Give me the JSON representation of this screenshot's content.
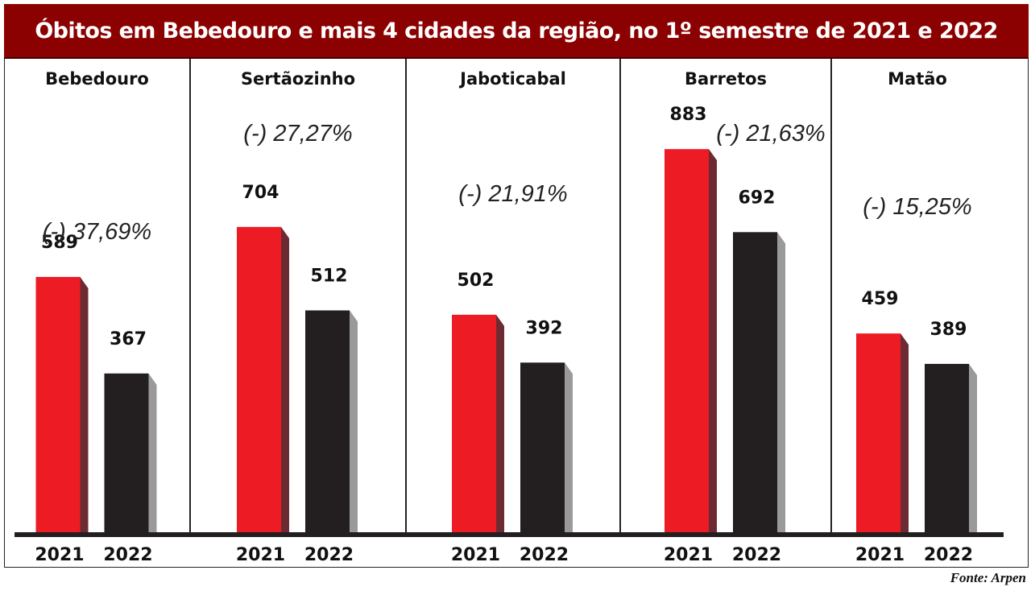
{
  "chart_data": {
    "type": "bar",
    "title": "Óbitos em Bebedouro e mais 4 cidades da região, no 1º semestre de 2021 e 2022",
    "categories": [
      "Bebedouro",
      "Sertãozinho",
      "Jaboticabal",
      "Barretos",
      "Matão"
    ],
    "series": [
      {
        "name": "2021",
        "values": [
          589,
          704,
          502,
          883,
          459
        ],
        "color": "#ed1c24"
      },
      {
        "name": "2022",
        "values": [
          367,
          512,
          392,
          692,
          389
        ],
        "color": "#231f20"
      }
    ],
    "changes": [
      "(-) 37,69%",
      "(-) 27,27%",
      "(-) 21,91%",
      "(-) 21,63%",
      "(-) 15,25%"
    ],
    "ylim": [
      0,
      1000
    ],
    "grid": false,
    "legend": "none"
  },
  "source": "Fonte: Arpen",
  "colors": {
    "title_bg": "#8b0000",
    "red_side": "#6e2a33",
    "black_side": "#9a9a9a"
  }
}
